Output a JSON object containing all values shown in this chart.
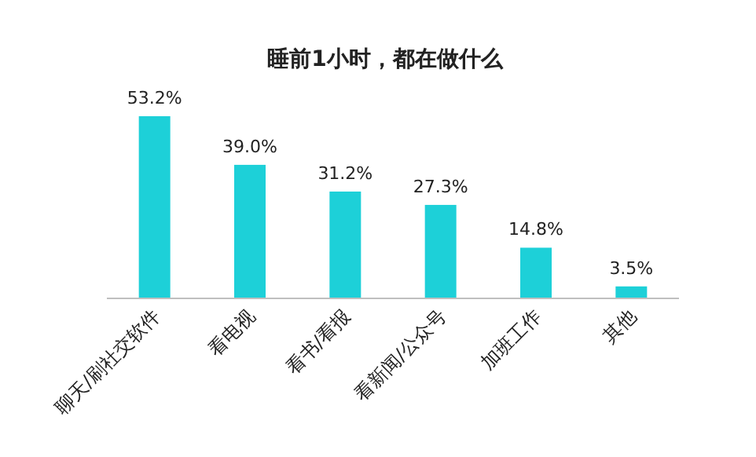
{
  "chart_data": {
    "type": "bar",
    "title": "睡前1小时，都在做什么",
    "categories": [
      "聊天/刷社交软件",
      "看电视",
      "看书/看报",
      "看新闻/公众号",
      "加班工作",
      "其他"
    ],
    "values": [
      53.2,
      39.0,
      31.2,
      27.3,
      14.8,
      3.5
    ],
    "value_labels": [
      "53.2%",
      "39.0%",
      "31.2%",
      "27.3%",
      "14.8%",
      "3.5%"
    ],
    "color": "#1dd0d8"
  }
}
